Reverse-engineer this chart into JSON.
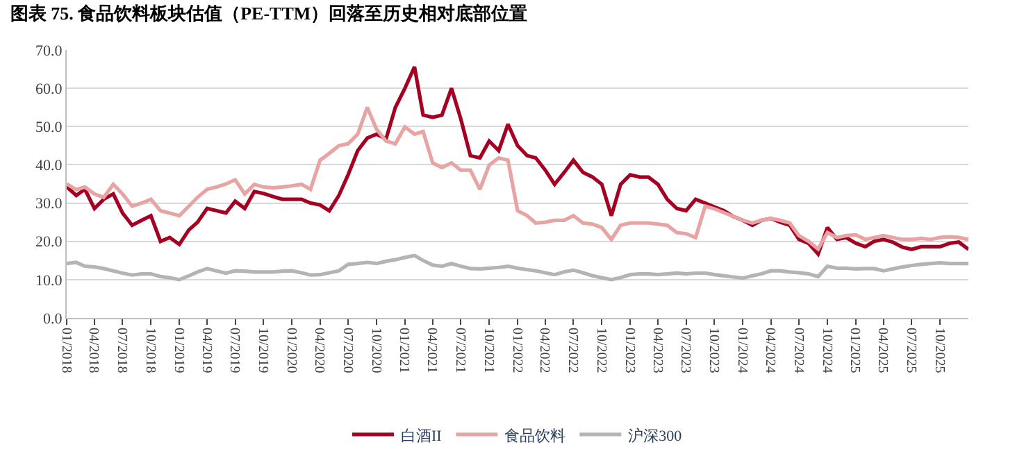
{
  "chart_data": {
    "type": "line",
    "title": "图表 75. 食品饮料板块估值（PE-TTM）回落至历史相对底部位置",
    "x": [
      "2018-01",
      "2018-02",
      "2018-03",
      "2018-04",
      "2018-05",
      "2018-06",
      "2018-07",
      "2018-08",
      "2018-09",
      "2018-10",
      "2018-11",
      "2018-12",
      "2019-01",
      "2019-02",
      "2019-03",
      "2019-04",
      "2019-05",
      "2019-06",
      "2019-07",
      "2019-08",
      "2019-09",
      "2019-10",
      "2019-11",
      "2019-12",
      "2020-01",
      "2020-02",
      "2020-03",
      "2020-04",
      "2020-05",
      "2020-06",
      "2020-07",
      "2020-08",
      "2020-09",
      "2020-10",
      "2020-11",
      "2020-12",
      "2021-01",
      "2021-02",
      "2021-03",
      "2021-04",
      "2021-05",
      "2021-06",
      "2021-07",
      "2021-08",
      "2021-09",
      "2021-10",
      "2021-11",
      "2021-12",
      "2022-01",
      "2022-02",
      "2022-03",
      "2022-04",
      "2022-05",
      "2022-06",
      "2022-07",
      "2022-08",
      "2022-09",
      "2022-10",
      "2022-11",
      "2022-12",
      "2023-01",
      "2023-02",
      "2023-03",
      "2023-04",
      "2023-05",
      "2023-06",
      "2023-07",
      "2023-08",
      "2023-09",
      "2023-10",
      "2023-11",
      "2023-12",
      "2024-01",
      "2024-02",
      "2024-03",
      "2024-04",
      "2024-05",
      "2024-06",
      "2024-07",
      "2024-08",
      "2024-09",
      "2024-10",
      "2024-11",
      "2024-12",
      "2025-01",
      "2025-02",
      "2025-03",
      "2025-04",
      "2025-05",
      "2025-06",
      "2025-07",
      "2025-08",
      "2025-09",
      "2025-10",
      "2025-11",
      "2025-12",
      "2026-01"
    ],
    "series": [
      {
        "name": "白酒II",
        "color": "#a50021",
        "values": [
          34.3,
          32,
          33.6,
          28.6,
          31,
          32.4,
          27.4,
          24.2,
          25.5,
          26.7,
          20,
          21,
          19.2,
          23,
          25,
          28.6,
          28,
          27.4,
          30.5,
          28.6,
          33,
          32.5,
          31.7,
          31,
          31,
          31,
          30,
          29.5,
          28,
          32,
          37.4,
          43.7,
          47,
          48,
          46.8,
          55,
          60,
          65.6,
          53,
          52.4,
          53,
          60,
          52,
          42.4,
          41.8,
          46.2,
          43.7,
          50.6,
          45,
          42.4,
          41.8,
          38.6,
          34.9,
          38,
          41.2,
          38,
          36.8,
          34.9,
          26.7,
          34.9,
          37.4,
          36.8,
          36.8,
          34.9,
          31,
          28.6,
          28,
          31,
          30,
          29,
          28,
          26.5,
          25.5,
          24.2,
          25.5,
          26,
          25,
          24.2,
          20.5,
          19.5,
          16.7,
          23.6,
          20.5,
          21,
          19.5,
          18.6,
          20,
          20.5,
          19.8,
          18.5,
          17.9,
          18.6,
          18.6,
          18.6,
          19.5,
          19.8,
          17.9
        ]
      },
      {
        "name": "食品饮料",
        "color": "#e8a3a3",
        "values": [
          35,
          33.5,
          34.2,
          32.4,
          31.5,
          34.9,
          32.4,
          29.2,
          30,
          31,
          28,
          27.4,
          26.7,
          29.2,
          31.5,
          33.6,
          34.2,
          35,
          36.1,
          32.4,
          34.9,
          34.2,
          34,
          34.2,
          34.5,
          34.9,
          33.6,
          41.2,
          43,
          45,
          45.5,
          48,
          55,
          49.3,
          46.2,
          45.5,
          49.9,
          48,
          48.7,
          40.5,
          39.3,
          40.5,
          38.6,
          38.6,
          33.6,
          39.9,
          41.8,
          41.2,
          28,
          26.7,
          24.8,
          25,
          25.5,
          25.5,
          26.7,
          24.8,
          24.5,
          23.6,
          20.5,
          24.2,
          24.8,
          24.8,
          24.8,
          24.5,
          24.2,
          22.3,
          22,
          21,
          29.2,
          28.5,
          27.5,
          26.5,
          25.5,
          24.8,
          25.5,
          26,
          25.5,
          24.8,
          21.5,
          20,
          18,
          22.3,
          21,
          21.5,
          21.7,
          20.5,
          21,
          21.5,
          21,
          20.5,
          20.5,
          20.8,
          20.5,
          21,
          21.2,
          21,
          20.5
        ]
      },
      {
        "name": "沪深300",
        "color": "#b4b4b4",
        "values": [
          14.2,
          14.5,
          13.5,
          13.3,
          12.9,
          12.3,
          11.7,
          11.2,
          11.5,
          11.5,
          10.8,
          10.5,
          10,
          11,
          12,
          12.9,
          12.3,
          11.7,
          12.3,
          12.2,
          12,
          12,
          12,
          12.2,
          12.3,
          11.8,
          11.2,
          11.3,
          11.8,
          12.3,
          14,
          14.2,
          14.5,
          14.2,
          14.8,
          15.2,
          15.8,
          16.3,
          15,
          13.8,
          13.5,
          14.2,
          13.5,
          12.9,
          12.8,
          13,
          13.2,
          13.5,
          13,
          12.6,
          12.3,
          11.8,
          11.3,
          12,
          12.5,
          11.8,
          11,
          10.5,
          10,
          10.5,
          11.3,
          11.5,
          11.5,
          11.3,
          11.5,
          11.7,
          11.5,
          11.7,
          11.7,
          11.3,
          11,
          10.7,
          10.4,
          11,
          11.5,
          12.3,
          12.3,
          12,
          11.8,
          11.5,
          10.8,
          13.5,
          13,
          13,
          12.8,
          12.9,
          12.9,
          12.3,
          12.8,
          13.3,
          13.7,
          14,
          14.2,
          14.4,
          14.2,
          14.2,
          14.2
        ]
      }
    ],
    "xlim": [
      "2018-01-01",
      "2026-01-01"
    ],
    "xticks": [
      {
        "value": "2018-01",
        "label": "01/2018"
      },
      {
        "value": "2018-04",
        "label": "04/2018"
      },
      {
        "value": "2018-07",
        "label": "07/2018"
      },
      {
        "value": "2018-10",
        "label": "10/2018"
      },
      {
        "value": "2019-01",
        "label": "01/2019"
      },
      {
        "value": "2019-04",
        "label": "04/2019"
      },
      {
        "value": "2019-07",
        "label": "07/2019"
      },
      {
        "value": "2019-10",
        "label": "10/2019"
      },
      {
        "value": "2020-01",
        "label": "01/2020"
      },
      {
        "value": "2020-04",
        "label": "04/2020"
      },
      {
        "value": "2020-07",
        "label": "07/2020"
      },
      {
        "value": "2020-10",
        "label": "10/2020"
      },
      {
        "value": "2021-01",
        "label": "01/2021"
      },
      {
        "value": "2021-04",
        "label": "04/2021"
      },
      {
        "value": "2021-07",
        "label": "07/2021"
      },
      {
        "value": "2021-10",
        "label": "10/2021"
      },
      {
        "value": "2022-01",
        "label": "01/2022"
      },
      {
        "value": "2022-04",
        "label": "04/2022"
      },
      {
        "value": "2022-07",
        "label": "07/2022"
      },
      {
        "value": "2022-10",
        "label": "10/2022"
      },
      {
        "value": "2023-01",
        "label": "01/2023"
      },
      {
        "value": "2023-04",
        "label": "04/2023"
      },
      {
        "value": "2023-07",
        "label": "07/2023"
      },
      {
        "value": "2023-10",
        "label": "10/2023"
      },
      {
        "value": "2024-01",
        "label": "01/2024"
      },
      {
        "value": "2024-04",
        "label": "04/2024"
      },
      {
        "value": "2024-07",
        "label": "07/2024"
      },
      {
        "value": "2024-10",
        "label": "10/2024"
      },
      {
        "value": "2025-01",
        "label": "01/2025"
      },
      {
        "value": "2025-04",
        "label": "04/2025"
      },
      {
        "value": "2025-07",
        "label": "07/2025"
      },
      {
        "value": "2025-10",
        "label": "10/2025"
      }
    ],
    "ylim": [
      0,
      70
    ],
    "yticks": [
      {
        "value": 0,
        "label": "0.0"
      },
      {
        "value": 10,
        "label": "10.0"
      },
      {
        "value": 20,
        "label": "20.0"
      },
      {
        "value": 30,
        "label": "30.0"
      },
      {
        "value": 40,
        "label": "40.0"
      },
      {
        "value": 50,
        "label": "50.0"
      },
      {
        "value": 60,
        "label": "60.0"
      },
      {
        "value": 70,
        "label": "70.0"
      }
    ],
    "grid": "y",
    "legend": "bottom",
    "marker": "none",
    "line_style": "solid"
  }
}
